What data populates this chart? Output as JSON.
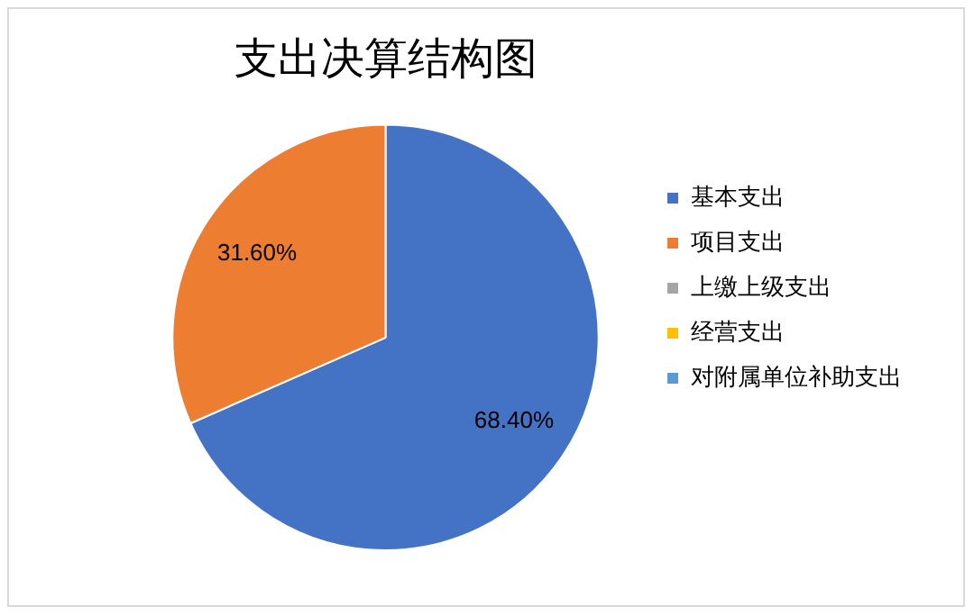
{
  "chart_data": {
    "type": "pie",
    "title": "支出决算结构图",
    "categories": [
      "基本支出",
      "项目支出",
      "上缴上级支出",
      "经营支出",
      "对附属单位补助支出"
    ],
    "values": [
      68.4,
      31.6,
      0,
      0,
      0
    ],
    "colors": [
      "#4472c4",
      "#ed7d31",
      "#a5a5a5",
      "#ffc000",
      "#5b9bd5"
    ],
    "value_labels": [
      "68.40%",
      "31.60%",
      null,
      null,
      null
    ],
    "legend": "right"
  }
}
